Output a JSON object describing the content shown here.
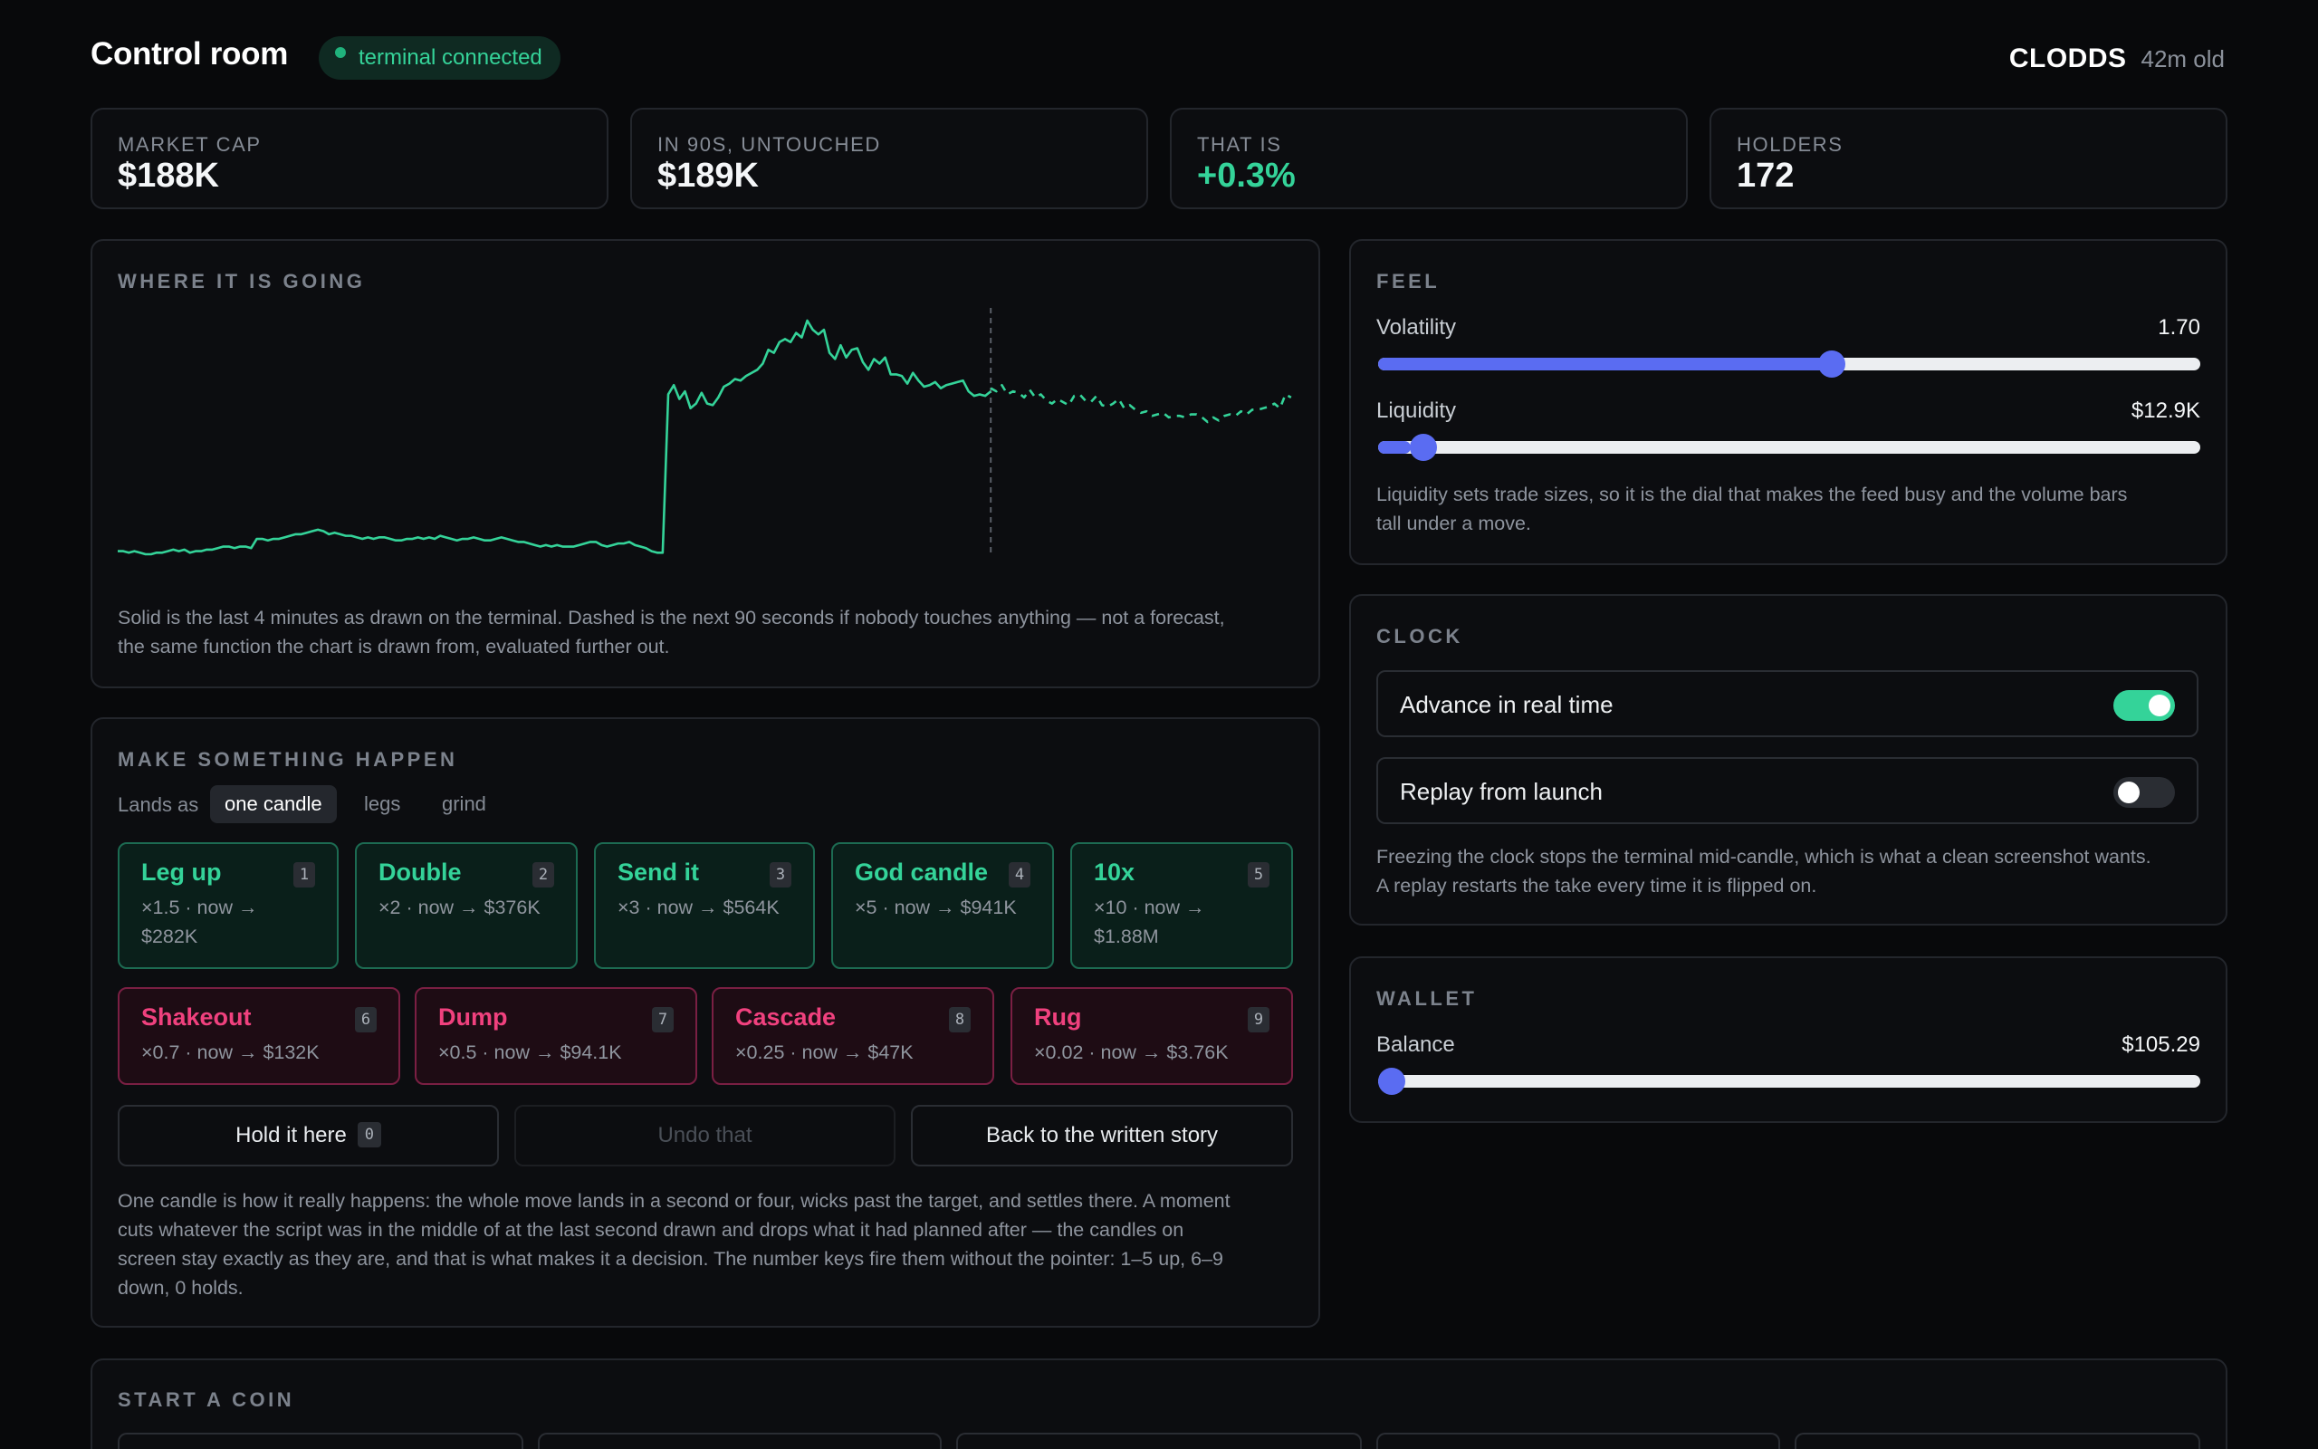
{
  "header": {
    "title": "Control room",
    "status": "terminal connected",
    "ticker": "CLODDS",
    "age": "42m old"
  },
  "stats": [
    {
      "label": "MARKET CAP",
      "value": "$188K"
    },
    {
      "label": "IN 90S, UNTOUCHED",
      "value": "$189K"
    },
    {
      "label": "THAT IS",
      "value": "+0.3%"
    },
    {
      "label": "HOLDERS",
      "value": "172"
    }
  ],
  "projection": {
    "title": "WHERE IT IS GOING",
    "caption_1": "Solid is the last 4 minutes as drawn on the terminal. Dashed is the next 90 seconds if nobody touches anything — not a forecast,",
    "caption_2": "the same function the chart is drawn from, evaluated further out."
  },
  "chart_data": {
    "type": "line",
    "title": "",
    "xlabel": "",
    "ylabel": "",
    "series": [
      {
        "style": "solid",
        "values": [
          10,
          10,
          9,
          10,
          9,
          8,
          8,
          9,
          9,
          10,
          11,
          10,
          11,
          9,
          10,
          10,
          11,
          11,
          12,
          13,
          13,
          12,
          13,
          13,
          12,
          18,
          18,
          17,
          18,
          18,
          19,
          20,
          21,
          21,
          22,
          23,
          24,
          23,
          21,
          22,
          21,
          20,
          20,
          19,
          18,
          19,
          18,
          19,
          19,
          18,
          17,
          17,
          18,
          18,
          19,
          18,
          19,
          18,
          20,
          19,
          18,
          17,
          18,
          18,
          19,
          18,
          17,
          17,
          18,
          19,
          18,
          17,
          16,
          16,
          15,
          14,
          13,
          14,
          13,
          14,
          13,
          13,
          13,
          14,
          15,
          16,
          16,
          14,
          13,
          14,
          15,
          15,
          16,
          14,
          13,
          12,
          10,
          9,
          9,
          112,
          118,
          109,
          114,
          103,
          106,
          113,
          106,
          105,
          110,
          117,
          119,
          122,
          121,
          124,
          126,
          128,
          132,
          141,
          139,
          146,
          148,
          146,
          152,
          149,
          160,
          154,
          151,
          154,
          139,
          135,
          144,
          136,
          141,
          142,
          133,
          128,
          135,
          132,
          136,
          125,
          125,
          124,
          119,
          126,
          121,
          117,
          118,
          120,
          116,
          118,
          119,
          120,
          121,
          114,
          111,
          112,
          111,
          114
        ]
      },
      {
        "style": "dashed",
        "values": [
          116,
          114,
          118,
          112,
          114,
          113,
          110,
          115,
          110,
          112,
          108,
          106,
          109,
          107,
          105,
          111,
          112,
          108,
          107,
          111,
          105,
          104,
          106,
          109,
          103,
          105,
          102,
          100,
          101,
          98,
          99,
          100,
          97,
          98,
          98,
          97,
          99,
          99,
          97,
          94,
          97,
          95,
          98,
          99,
          98,
          101,
          99,
          102,
          102,
          103,
          104,
          106,
          103,
          112,
          110
        ]
      }
    ],
    "divider": "now",
    "grid": false
  },
  "feel": {
    "title": "FEEL",
    "volatility_label": "Volatility",
    "volatility_value": "1.70",
    "volatility_level": 0.553,
    "liquidity_label": "Liquidity",
    "liquidity_value": "$12.9K",
    "liquidity_level": 0.04,
    "caption_1": "Liquidity sets trade sizes, so it is the dial that makes the feed busy and the volume bars",
    "caption_2": "tall under a move."
  },
  "clock": {
    "title": "CLOCK",
    "realtime_label": "Advance in real time",
    "realtime_on": true,
    "replay_label": "Replay from launch",
    "replay_on": false,
    "caption_1": "Freezing the clock stops the terminal mid-candle, which is what a clean screenshot wants.",
    "caption_2": "A replay restarts the take every time it is flipped on."
  },
  "wallet": {
    "title": "WALLET",
    "balance_label": "Balance",
    "balance_value": "$105.29",
    "balance_level": 0.0
  },
  "actions": {
    "title": "MAKE SOMETHING HAPPEN",
    "lands_as": "Lands as",
    "modes": [
      "one candle",
      "legs",
      "grind"
    ],
    "active_mode": "one candle",
    "up": [
      {
        "name": "Leg up",
        "key": "1",
        "desc_1": "×1.5 · now →",
        "desc_2": "$282K"
      },
      {
        "name": "Double",
        "key": "2",
        "desc_1": "×2 · now → $376K",
        "desc_2": ""
      },
      {
        "name": "Send it",
        "key": "3",
        "desc_1": "×3 · now → $564K",
        "desc_2": ""
      },
      {
        "name": "God candle",
        "key": "4",
        "desc_1": "×5 · now → $941K",
        "desc_2": ""
      },
      {
        "name": "10x",
        "key": "5",
        "desc_1": "×10 · now →",
        "desc_2": "$1.88M"
      }
    ],
    "down": [
      {
        "name": "Shakeout",
        "key": "6",
        "desc_1": "×0.7 · now → $132K"
      },
      {
        "name": "Dump",
        "key": "7",
        "desc_1": "×0.5 · now → $94.1K"
      },
      {
        "name": "Cascade",
        "key": "8",
        "desc_1": "×0.25 · now → $47K"
      },
      {
        "name": "Rug",
        "key": "9",
        "desc_1": "×0.02 · now → $3.76K"
      }
    ],
    "hold_label": "Hold it here",
    "hold_key": "0",
    "undo_label": "Undo that",
    "back_label": "Back to the written story",
    "caption_1": "One candle is how it really happens: the whole move lands in a second or four, wicks past the target, and settles there. A moment",
    "caption_2": "cuts whatever the script was in the middle of at the last second drawn and drops what it had planned after — the candles on",
    "caption_3": "screen stay exactly as they are, and that is what makes it a decision. The number keys fire them without the pointer: 1–5 up, 6–9",
    "caption_4": "down, 0 holds."
  },
  "start_coin": {
    "title": "START A COIN"
  },
  "colors": {
    "accent_green": "#34d399",
    "accent_red": "#f0417e",
    "slider_blue": "#5a6cf2"
  }
}
